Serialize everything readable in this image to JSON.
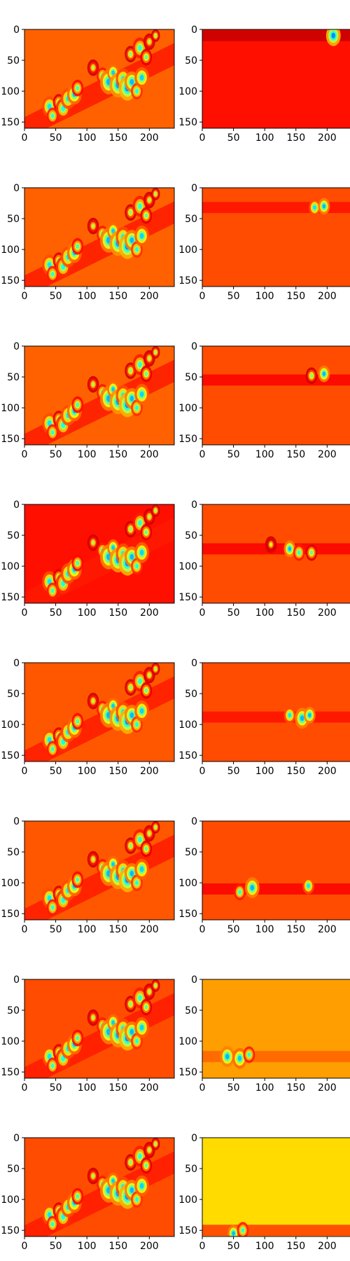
{
  "chart_data": {
    "type": "heatmap",
    "colormap": "jet",
    "layout": {
      "rows": 8,
      "cols": 2
    },
    "image_size": {
      "width": 240,
      "height": 160
    },
    "xlim": [
      0,
      240
    ],
    "ylim": [
      160,
      0
    ],
    "x_ticks": [
      0,
      50,
      100,
      150,
      200
    ],
    "y_ticks": [
      0,
      50,
      100,
      150
    ],
    "left_column": {
      "description": "same activation map repeated per row",
      "background_level": 0.78,
      "row_background_levels": [
        0.78,
        0.78,
        0.78,
        0.86,
        0.79,
        0.79,
        0.8,
        0.8
      ],
      "band": {
        "from": [
          0,
          160
        ],
        "to": [
          240,
          40
        ],
        "half_width": 18,
        "level": 0.85
      },
      "blobs": [
        [
          40,
          125,
          5,
          0.35
        ],
        [
          45,
          140,
          4,
          0.4
        ],
        [
          55,
          118,
          4,
          0.45
        ],
        [
          62,
          128,
          5,
          0.38
        ],
        [
          70,
          112,
          5,
          0.35
        ],
        [
          80,
          105,
          5,
          0.32
        ],
        [
          85,
          95,
          4,
          0.42
        ],
        [
          110,
          62,
          4,
          0.55
        ],
        [
          125,
          75,
          4,
          0.4
        ],
        [
          135,
          85,
          6,
          0.3
        ],
        [
          142,
          70,
          4,
          0.32
        ],
        [
          150,
          90,
          6,
          0.28
        ],
        [
          158,
          80,
          5,
          0.35
        ],
        [
          165,
          95,
          6,
          0.25
        ],
        [
          172,
          85,
          5,
          0.3
        ],
        [
          180,
          100,
          4,
          0.38
        ],
        [
          188,
          78,
          5,
          0.33
        ],
        [
          170,
          40,
          4,
          0.5
        ],
        [
          185,
          30,
          5,
          0.4
        ],
        [
          195,
          45,
          4,
          0.45
        ],
        [
          200,
          20,
          4,
          0.55
        ],
        [
          210,
          10,
          3,
          0.5
        ]
      ]
    },
    "right_column": [
      {
        "row": 0,
        "background_level": 0.86,
        "band_y": 10,
        "band_level": 0.93,
        "blobs": [
          [
            210,
            10,
            5,
            0.25
          ]
        ]
      },
      {
        "row": 1,
        "background_level": 0.8,
        "band_y": 32,
        "band_level": 0.86,
        "blobs": [
          [
            180,
            32,
            4,
            0.35
          ],
          [
            195,
            30,
            4,
            0.3
          ]
        ]
      },
      {
        "row": 2,
        "background_level": 0.8,
        "band_y": 55,
        "band_level": 0.88,
        "blobs": [
          [
            175,
            48,
            4,
            0.5
          ],
          [
            195,
            45,
            4,
            0.3
          ]
        ]
      },
      {
        "row": 3,
        "background_level": 0.8,
        "band_y": 72,
        "band_level": 0.88,
        "blobs": [
          [
            110,
            65,
            4,
            0.6
          ],
          [
            140,
            72,
            4,
            0.3
          ],
          [
            155,
            78,
            4,
            0.4
          ],
          [
            175,
            78,
            4,
            0.45
          ]
        ]
      },
      {
        "row": 4,
        "background_level": 0.8,
        "band_y": 88,
        "band_level": 0.86,
        "blobs": [
          [
            140,
            85,
            4,
            0.35
          ],
          [
            160,
            90,
            5,
            0.3
          ],
          [
            172,
            85,
            4,
            0.3
          ]
        ]
      },
      {
        "row": 5,
        "background_level": 0.8,
        "band_y": 110,
        "band_level": 0.88,
        "blobs": [
          [
            60,
            115,
            4,
            0.4
          ],
          [
            80,
            108,
            5,
            0.3
          ],
          [
            170,
            105,
            4,
            0.35
          ]
        ]
      },
      {
        "row": 6,
        "background_level": 0.72,
        "band_y": 125,
        "band_level": 0.78,
        "blobs": [
          [
            40,
            125,
            5,
            0.3
          ],
          [
            60,
            128,
            5,
            0.32
          ],
          [
            75,
            122,
            4,
            0.4
          ]
        ]
      },
      {
        "row": 7,
        "background_level": 0.66,
        "band_y": 150,
        "band_level": 0.82,
        "blobs": [
          [
            50,
            155,
            4,
            0.3
          ],
          [
            65,
            150,
            4,
            0.4
          ]
        ]
      }
    ]
  }
}
